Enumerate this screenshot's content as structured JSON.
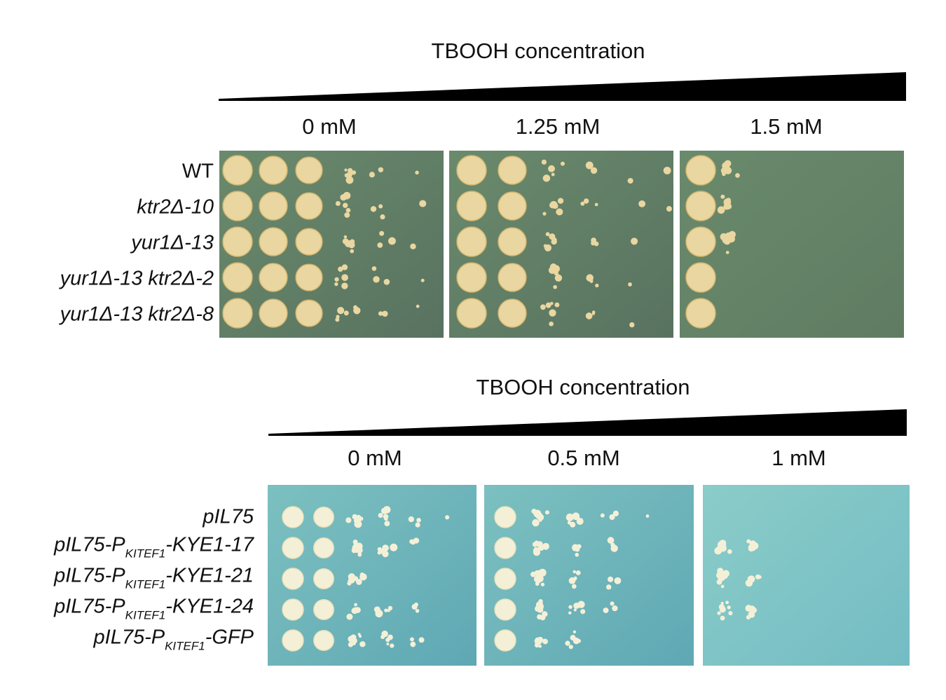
{
  "figure": {
    "top_panel": {
      "gradient_title": "TBOOH concentration",
      "concentrations": [
        "0 mM",
        "1.25 mM",
        "1.5 mM"
      ],
      "strains": [
        "WT",
        "ktr2Δ-10",
        "yur1Δ-13",
        "yur1Δ-13 ktr2Δ-2",
        "yur1Δ-13 ktr2Δ-8"
      ],
      "plate_color": "#5f7a63",
      "colony_color": "#e9d6a0",
      "growth_spots_per_row": [
        [
          6,
          6,
          6,
          6,
          6
        ],
        [
          6,
          6,
          6,
          5,
          5
        ],
        [
          2,
          2,
          2,
          1,
          1
        ]
      ]
    },
    "bottom_panel": {
      "gradient_title": "TBOOH concentration",
      "concentrations": [
        "0 mM",
        "0.5 mM",
        "1 mM"
      ],
      "strains": [
        {
          "prefix": "pIL75",
          "sub": "",
          "suffix": ""
        },
        {
          "prefix": "pIL75-P",
          "sub": "KITEF1",
          "suffix": "-KYE1-17"
        },
        {
          "prefix": "pIL75-P",
          "sub": "KITEF1",
          "suffix": "-KYE1-21"
        },
        {
          "prefix": "pIL75-P",
          "sub": "KITEF1",
          "suffix": "-KYE1-24"
        },
        {
          "prefix": "pIL75-P",
          "sub": "KITEF1",
          "suffix": "-GFP"
        }
      ],
      "plate_color": "#6fb2b8",
      "colony_color": "#f4f0d8",
      "growth_spots_per_row": [
        [
          6,
          5,
          3,
          5,
          5
        ],
        [
          5,
          4,
          4,
          4,
          3
        ],
        [
          0,
          2,
          2,
          2,
          0
        ]
      ]
    }
  }
}
